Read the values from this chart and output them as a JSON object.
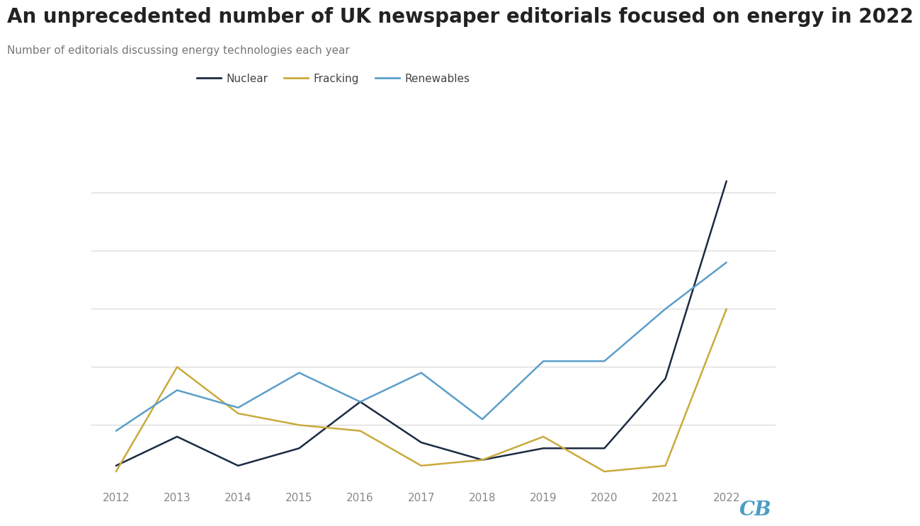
{
  "title": "An unprecedented number of UK newspaper editorials focused on energy in 2022",
  "subtitle": "Number of editorials discussing energy technologies each year",
  "years": [
    2012,
    2013,
    2014,
    2015,
    2016,
    2017,
    2018,
    2019,
    2020,
    2021,
    2022
  ],
  "nuclear": [
    3,
    8,
    3,
    6,
    14,
    7,
    4,
    6,
    6,
    18,
    52
  ],
  "fracking": [
    2,
    20,
    12,
    10,
    9,
    3,
    4,
    8,
    2,
    3,
    30
  ],
  "renewables": [
    9,
    16,
    13,
    19,
    14,
    19,
    11,
    21,
    21,
    30,
    38
  ],
  "nuclear_color": "#1b2a42",
  "fracking_color": "#c9aa3c",
  "renewables_color": "#5b9ec9",
  "background_color": "#ffffff",
  "grid_color": "#d0d0d0",
  "legend_labels": [
    "Nuclear",
    "Fracking",
    "Renewables"
  ],
  "ylim": [
    0,
    55
  ],
  "yticks": [
    0,
    10,
    20,
    30,
    40,
    50
  ],
  "line_width": 1.8,
  "cb_color": "#4a9cc4",
  "title_fontsize": 20,
  "subtitle_fontsize": 11,
  "tick_fontsize": 11,
  "legend_fontsize": 11,
  "xmin": 2011.6,
  "xmax": 2022.8
}
